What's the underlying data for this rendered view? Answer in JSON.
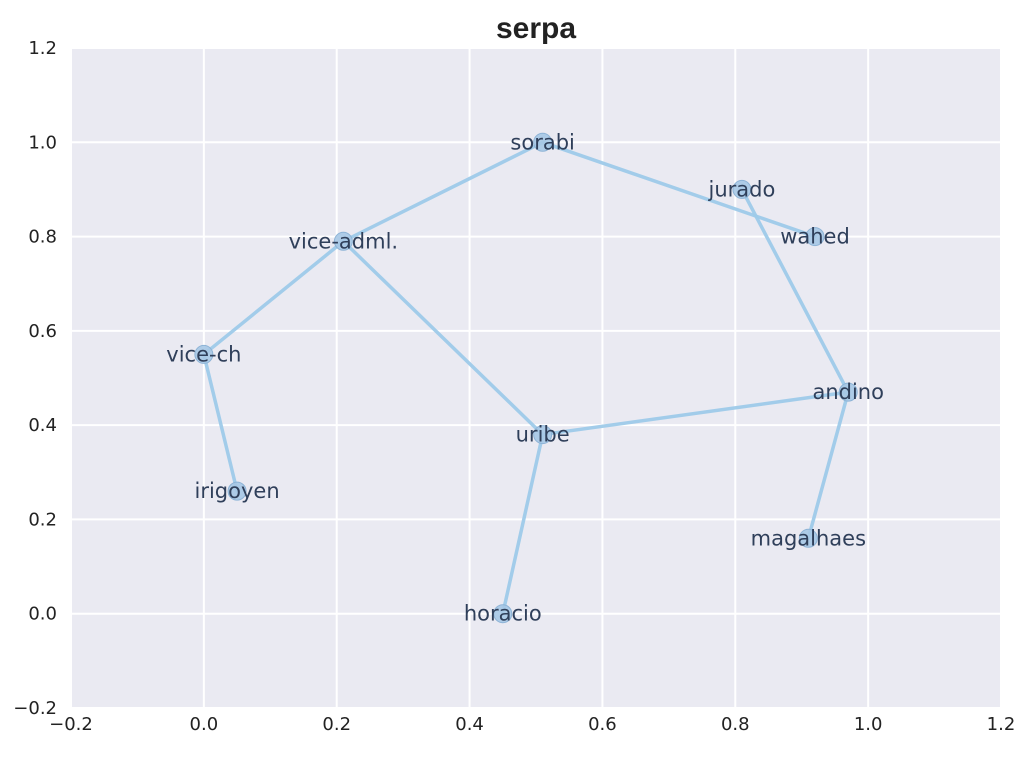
{
  "chart_data": {
    "type": "scatter",
    "title": "serpa",
    "xlabel": "",
    "ylabel": "",
    "xlim": [
      -0.2,
      1.2
    ],
    "ylim": [
      -0.2,
      1.2
    ],
    "x_ticks": [
      -0.2,
      0.0,
      0.2,
      0.4,
      0.6,
      0.8,
      1.0,
      1.2
    ],
    "y_ticks": [
      -0.2,
      0.0,
      0.2,
      0.4,
      0.6,
      0.8,
      1.0,
      1.2
    ],
    "x_tick_labels": [
      "−0.2",
      "0.0",
      "0.2",
      "0.4",
      "0.6",
      "0.8",
      "1.0",
      "1.2"
    ],
    "y_tick_labels": [
      "−0.2",
      "0.0",
      "0.2",
      "0.4",
      "0.6",
      "0.8",
      "1.0",
      "1.2"
    ],
    "grid": true,
    "colors": {
      "plot_background": "#eaeaf2",
      "grid": "#ffffff",
      "edge": "#9ecae9",
      "node_fill": "#a6c8e6",
      "node_stroke": "#8db3d6"
    },
    "nodes": [
      {
        "label": "sorabi",
        "x": 0.51,
        "y": 1.0
      },
      {
        "label": "jurado",
        "x": 0.81,
        "y": 0.9
      },
      {
        "label": "wahed",
        "x": 0.92,
        "y": 0.8
      },
      {
        "label": "vice-adml.",
        "x": 0.21,
        "y": 0.79
      },
      {
        "label": "vice-ch",
        "x": 0.0,
        "y": 0.55
      },
      {
        "label": "andino",
        "x": 0.97,
        "y": 0.47
      },
      {
        "label": "uribe",
        "x": 0.51,
        "y": 0.38
      },
      {
        "label": "irigoyen",
        "x": 0.05,
        "y": 0.26
      },
      {
        "label": "magalhaes",
        "x": 0.91,
        "y": 0.16
      },
      {
        "label": "horacio",
        "x": 0.45,
        "y": 0.0
      }
    ],
    "edges": [
      [
        "vice-ch",
        "irigoyen"
      ],
      [
        "vice-ch",
        "vice-adml."
      ],
      [
        "vice-adml.",
        "sorabi"
      ],
      [
        "vice-adml.",
        "uribe"
      ],
      [
        "sorabi",
        "wahed"
      ],
      [
        "jurado",
        "andino"
      ],
      [
        "andino",
        "uribe"
      ],
      [
        "andino",
        "magalhaes"
      ],
      [
        "uribe",
        "horacio"
      ]
    ]
  }
}
